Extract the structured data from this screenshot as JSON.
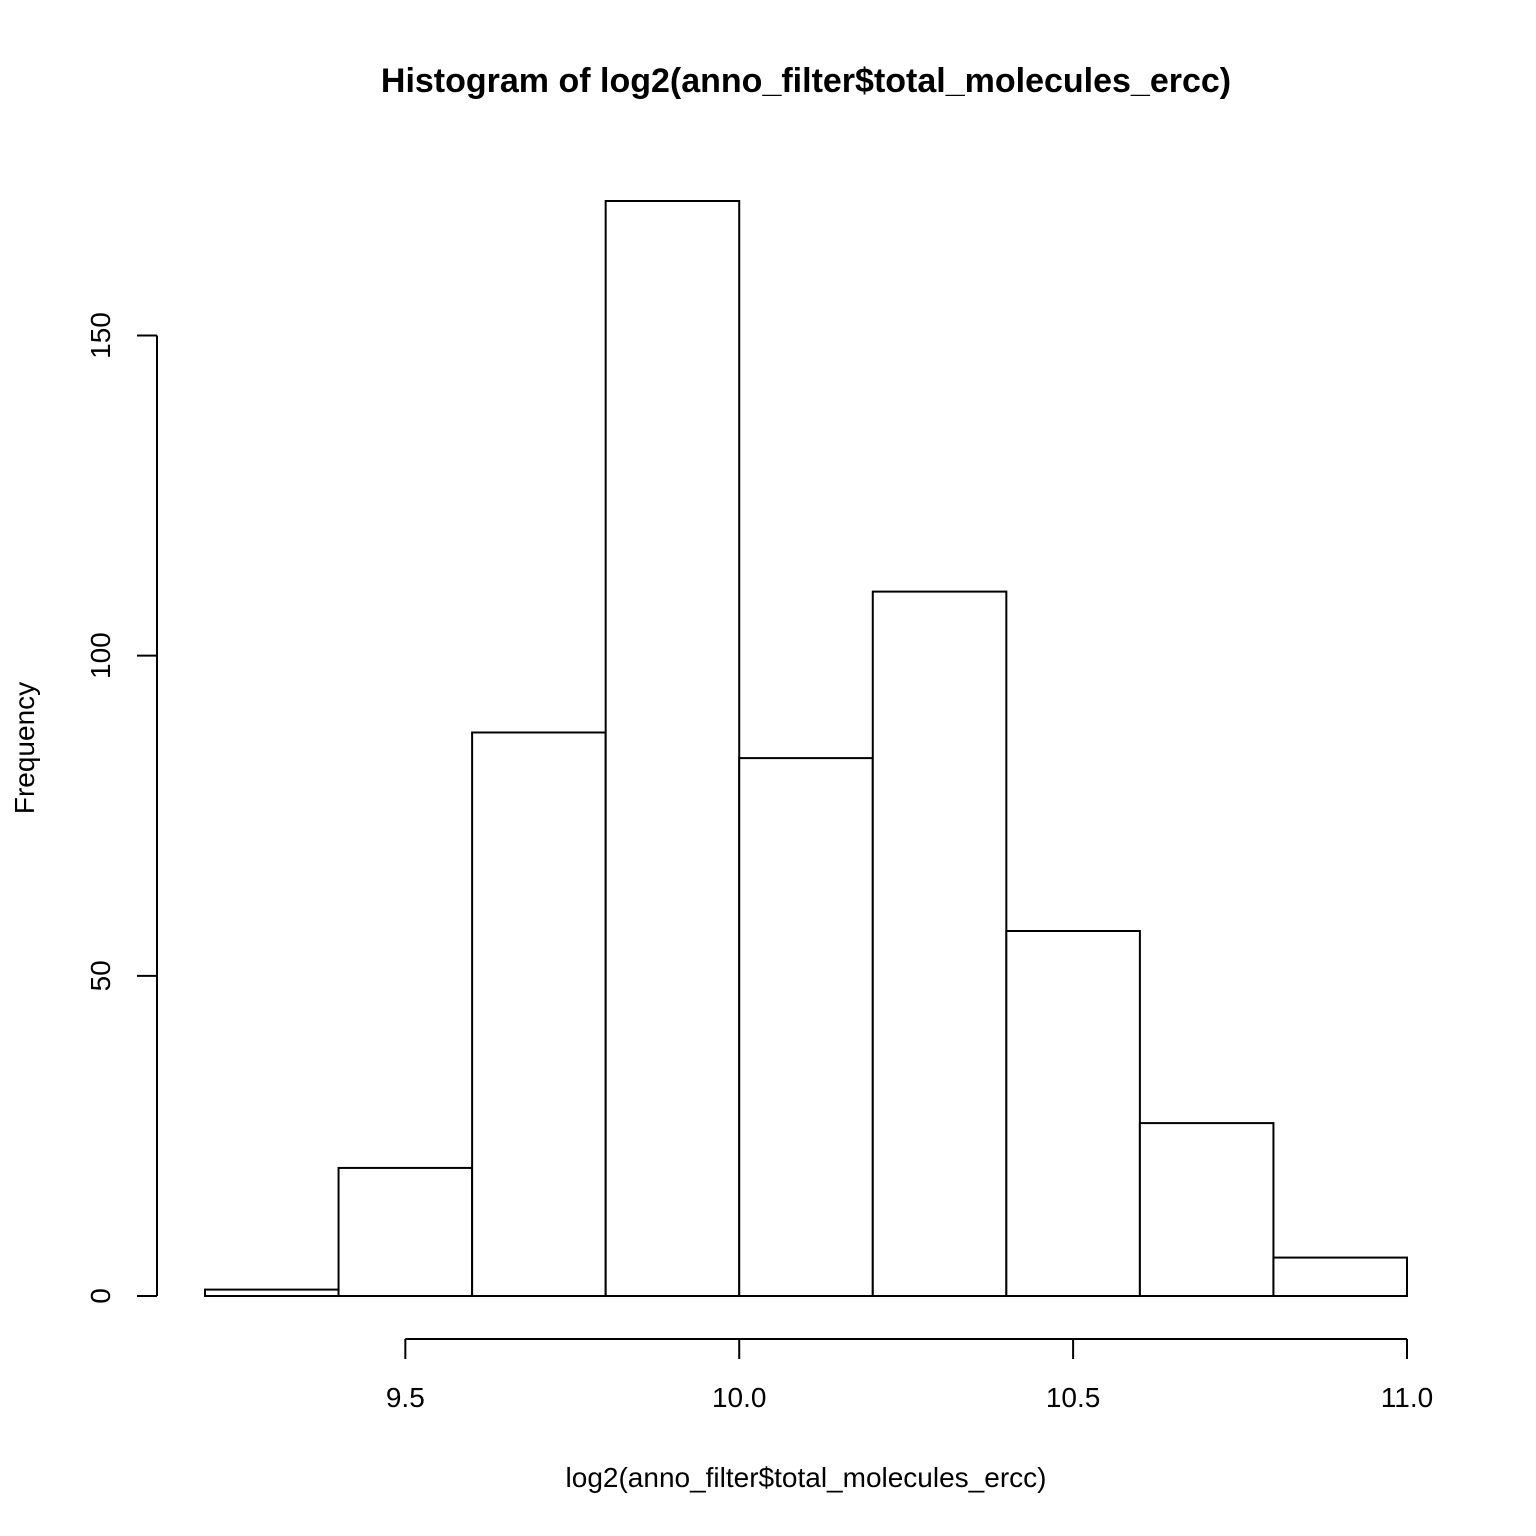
{
  "chart_data": {
    "type": "bar",
    "title": "Histogram of log2(anno_filter$total_molecules_ercc)",
    "xlabel": "log2(anno_filter$total_molecules_ercc)",
    "ylabel": "Frequency",
    "bins": [
      {
        "start": 9.2,
        "end": 9.4,
        "count": 1
      },
      {
        "start": 9.4,
        "end": 9.6,
        "count": 20
      },
      {
        "start": 9.6,
        "end": 9.8,
        "count": 88
      },
      {
        "start": 9.8,
        "end": 10.0,
        "count": 171
      },
      {
        "start": 10.0,
        "end": 10.2,
        "count": 84
      },
      {
        "start": 10.2,
        "end": 10.4,
        "count": 110
      },
      {
        "start": 10.4,
        "end": 10.6,
        "count": 57
      },
      {
        "start": 10.6,
        "end": 10.8,
        "count": 27
      },
      {
        "start": 10.8,
        "end": 11.0,
        "count": 6
      }
    ],
    "x_ticks": [
      "9.5",
      "10.0",
      "10.5",
      "11.0"
    ],
    "y_ticks": [
      "0",
      "50",
      "100",
      "150"
    ],
    "xlim": [
      9.2,
      11.0
    ],
    "ylim": [
      0,
      171
    ],
    "grid": false,
    "colors": {
      "bar_fill": "#ffffff",
      "bar_stroke": "#000000"
    }
  }
}
